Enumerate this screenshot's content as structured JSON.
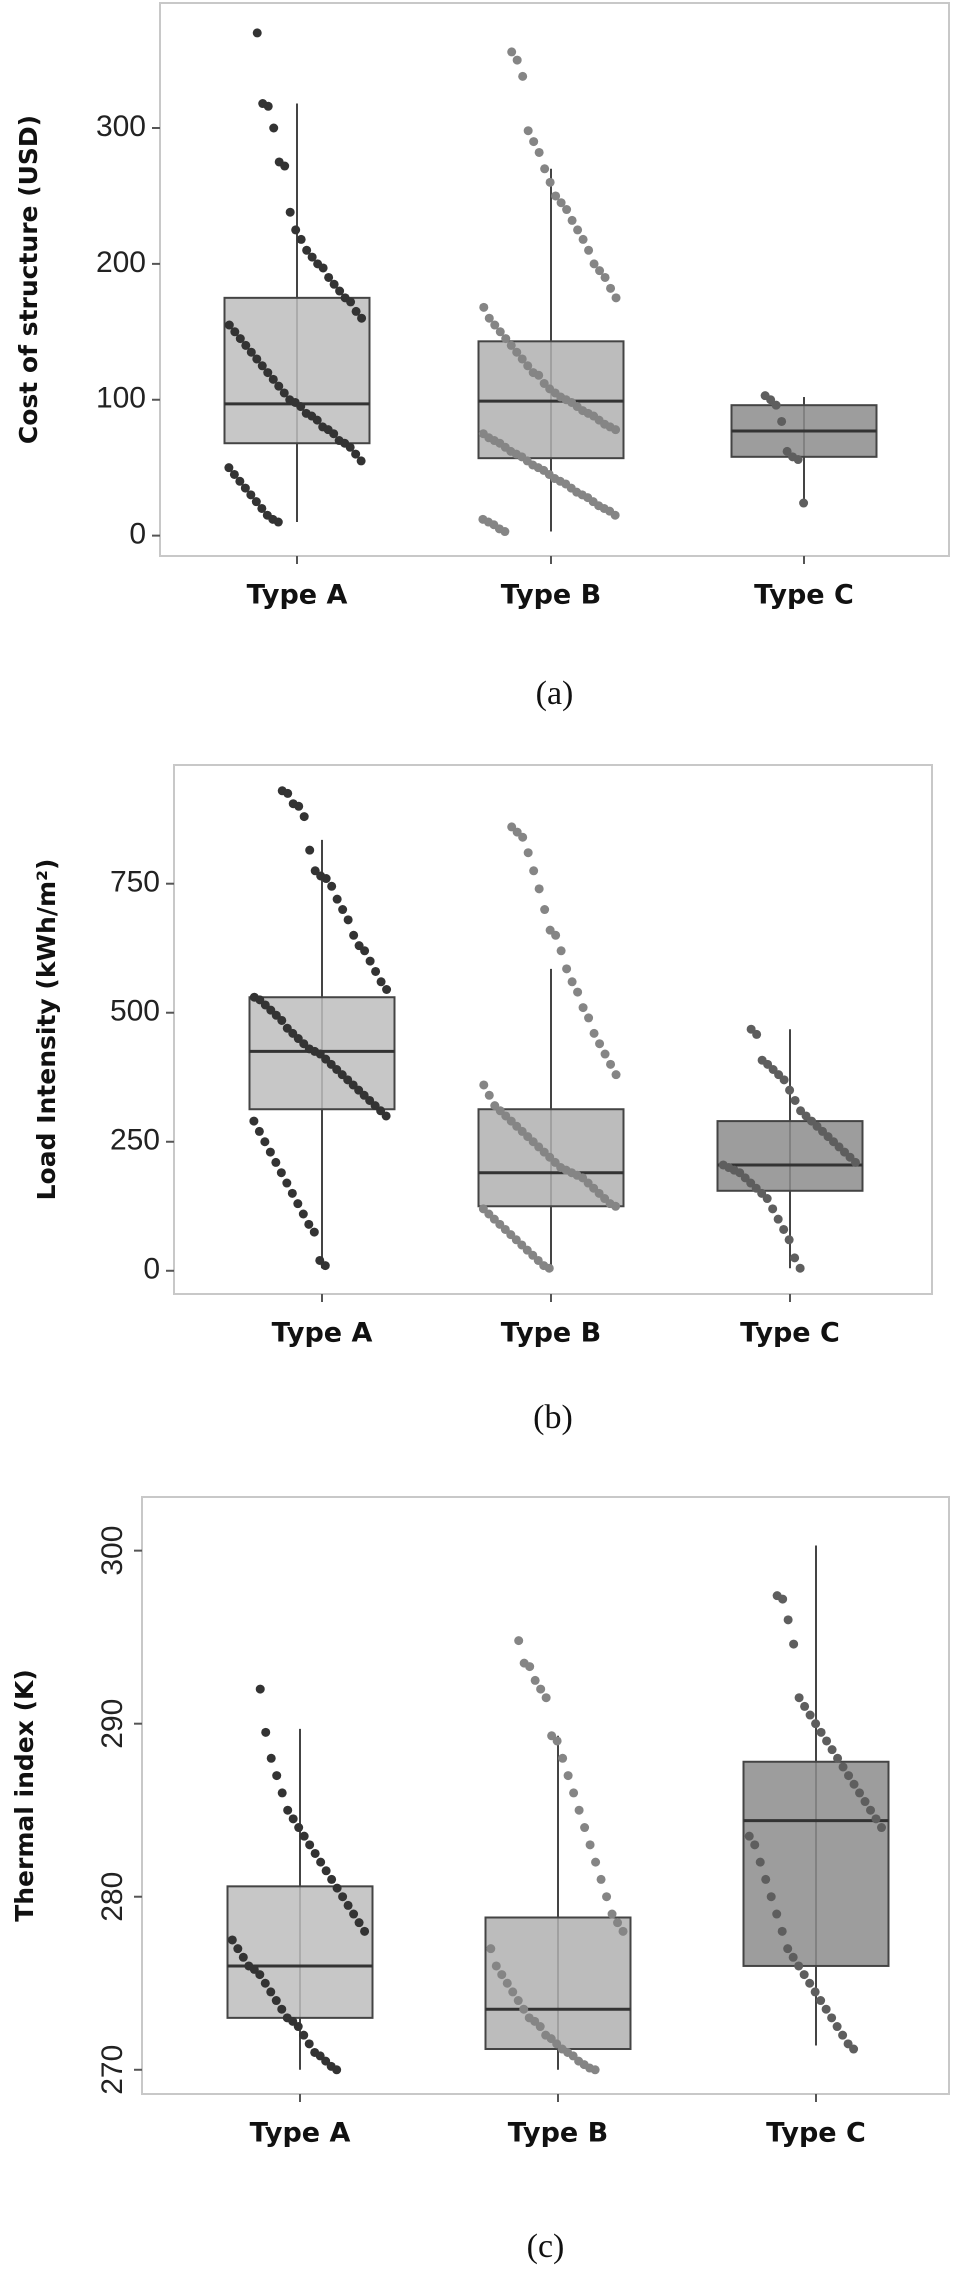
{
  "chart_data": [
    {
      "type": "box",
      "ylabel": "Cost of structure (USD)",
      "caption": "(a)",
      "categories": [
        "Type A",
        "Type B",
        "Type C"
      ],
      "ylim": [
        -15,
        392
      ],
      "yticks": [
        0,
        100,
        200,
        300
      ],
      "groups": [
        {
          "color": "#333333",
          "box_color": "#bdbdbd",
          "box": {
            "whisker_low": 10,
            "q1": 68,
            "median": 97,
            "q3": 175,
            "whisker_high": 318
          },
          "points": [
            370,
            318,
            316,
            300,
            275,
            272,
            238,
            225,
            218,
            210,
            205,
            200,
            197,
            190,
            185,
            180,
            175,
            172,
            165,
            160,
            155,
            150,
            145,
            140,
            135,
            130,
            125,
            120,
            115,
            110,
            105,
            100,
            98,
            95,
            90,
            88,
            85,
            80,
            78,
            75,
            70,
            68,
            65,
            60,
            55,
            50,
            45,
            40,
            35,
            30,
            25,
            20,
            15,
            12,
            10
          ]
        },
        {
          "color": "#858585",
          "box_color": "#b0b0b0",
          "box": {
            "whisker_low": 3,
            "q1": 57,
            "median": 99,
            "q3": 143,
            "whisker_high": 270
          },
          "points": [
            356,
            350,
            338,
            298,
            290,
            282,
            270,
            260,
            250,
            245,
            240,
            232,
            225,
            218,
            210,
            200,
            195,
            190,
            182,
            175,
            168,
            160,
            155,
            150,
            145,
            140,
            135,
            130,
            125,
            120,
            118,
            112,
            108,
            105,
            102,
            100,
            98,
            95,
            92,
            90,
            88,
            85,
            82,
            80,
            78,
            75,
            72,
            70,
            68,
            65,
            62,
            60,
            58,
            55,
            52,
            50,
            48,
            45,
            42,
            40,
            38,
            35,
            32,
            30,
            28,
            25,
            22,
            20,
            18,
            15,
            12,
            10,
            8,
            5,
            3
          ]
        },
        {
          "color": "#5e5e5e",
          "box_color": "#8c8c8c",
          "box": {
            "whisker_low": 24,
            "q1": 58,
            "median": 77,
            "q3": 96,
            "whisker_high": 102
          },
          "points": [
            103,
            100,
            96,
            84,
            62,
            58,
            56,
            24
          ]
        }
      ]
    },
    {
      "type": "box",
      "ylabel": "Load Intensity (kWh/m²)",
      "caption": "(b)",
      "categories": [
        "Type A",
        "Type B",
        "Type C"
      ],
      "ylim": [
        -45,
        980
      ],
      "yticks": [
        0,
        250,
        500,
        750
      ],
      "groups": [
        {
          "color": "#333333",
          "box_color": "#bdbdbd",
          "box": {
            "whisker_low": 5,
            "q1": 313,
            "median": 425,
            "q3": 530,
            "whisker_high": 835
          },
          "points": [
            930,
            925,
            905,
            900,
            880,
            815,
            775,
            765,
            760,
            745,
            720,
            700,
            680,
            650,
            630,
            620,
            600,
            580,
            560,
            545,
            530,
            525,
            515,
            505,
            495,
            485,
            470,
            460,
            450,
            440,
            430,
            425,
            420,
            410,
            400,
            390,
            380,
            370,
            360,
            350,
            340,
            330,
            320,
            310,
            300,
            290,
            270,
            250,
            230,
            210,
            190,
            170,
            150,
            130,
            110,
            90,
            75,
            20,
            10
          ]
        },
        {
          "color": "#858585",
          "box_color": "#b0b0b0",
          "box": {
            "whisker_low": 5,
            "q1": 125,
            "median": 190,
            "q3": 313,
            "whisker_high": 585
          },
          "points": [
            860,
            850,
            840,
            810,
            775,
            740,
            700,
            660,
            650,
            620,
            585,
            560,
            540,
            510,
            490,
            460,
            440,
            420,
            400,
            380,
            360,
            340,
            320,
            310,
            300,
            290,
            280,
            270,
            260,
            250,
            240,
            230,
            220,
            210,
            200,
            195,
            190,
            185,
            180,
            170,
            160,
            150,
            140,
            130,
            125,
            120,
            110,
            100,
            90,
            80,
            70,
            60,
            50,
            40,
            30,
            20,
            10,
            5
          ]
        },
        {
          "color": "#5e5e5e",
          "box_color": "#8c8c8c",
          "box": {
            "whisker_low": 5,
            "q1": 155,
            "median": 205,
            "q3": 290,
            "whisker_high": 468
          },
          "points": [
            468,
            458,
            408,
            400,
            390,
            380,
            370,
            350,
            330,
            310,
            300,
            290,
            280,
            270,
            260,
            250,
            240,
            230,
            220,
            210,
            205,
            200,
            195,
            190,
            180,
            170,
            160,
            150,
            140,
            120,
            100,
            80,
            60,
            25,
            5
          ]
        }
      ]
    },
    {
      "type": "box",
      "ylabel": "Thermal index (K)",
      "caption": "(c)",
      "categories": [
        "Type A",
        "Type B",
        "Type C"
      ],
      "ylim": [
        268.6,
        303.1
      ],
      "yticks": [
        270,
        280,
        290,
        300
      ],
      "groups": [
        {
          "color": "#333333",
          "box_color": "#bdbdbd",
          "box": {
            "whisker_low": 270,
            "q1": 273,
            "median": 276,
            "q3": 280.6,
            "whisker_high": 289.7
          },
          "points": [
            292,
            289.5,
            288,
            287,
            286,
            285,
            284.5,
            284,
            283.5,
            283,
            282.5,
            282,
            281.5,
            281,
            280.5,
            280,
            279.5,
            279,
            278.5,
            278,
            277.5,
            277,
            276.5,
            276,
            275.8,
            275.5,
            275,
            274.5,
            274,
            273.5,
            273,
            272.8,
            272.5,
            272,
            271.5,
            271,
            270.8,
            270.5,
            270.2,
            270
          ]
        },
        {
          "color": "#858585",
          "box_color": "#b0b0b0",
          "box": {
            "whisker_low": 270,
            "q1": 271.2,
            "median": 273.5,
            "q3": 278.8,
            "whisker_high": 289.3
          },
          "points": [
            294.8,
            293.5,
            293.3,
            292.5,
            292,
            291.5,
            289.3,
            289,
            288,
            287,
            286,
            285,
            284,
            283,
            282,
            281,
            280,
            279,
            278.5,
            278,
            277,
            276,
            275.5,
            275,
            274.5,
            274,
            273.5,
            273,
            272.8,
            272.5,
            272,
            271.8,
            271.5,
            271.2,
            271,
            270.8,
            270.5,
            270.3,
            270.1,
            270
          ]
        },
        {
          "color": "#5e5e5e",
          "box_color": "#8c8c8c",
          "box": {
            "whisker_low": 271.4,
            "q1": 276,
            "median": 284.4,
            "q3": 287.8,
            "whisker_high": 300.3
          },
          "points": [
            297.4,
            297.2,
            296,
            294.6,
            291.5,
            291,
            290.5,
            290,
            289.5,
            289,
            288.5,
            288,
            287.5,
            287,
            286.5,
            286,
            285.5,
            285,
            284.5,
            284,
            283.5,
            283,
            282,
            281,
            280,
            279,
            278,
            277,
            276.5,
            276,
            275.5,
            275,
            274.5,
            274,
            273.5,
            273,
            272.5,
            272,
            271.5,
            271.2
          ]
        }
      ]
    }
  ]
}
